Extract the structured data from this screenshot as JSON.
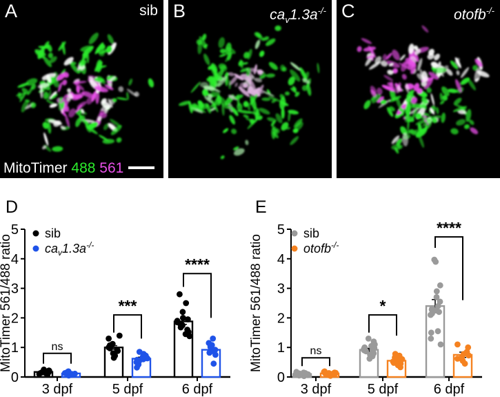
{
  "figure": {
    "colors": {
      "ch488_green": "#2ced2c",
      "ch561_magenta": "#e84fe8",
      "white": "#ffffff",
      "sib_black": "#000000",
      "cav_blue": "#1f53e8",
      "sib_gray": "#9a9a9a",
      "otofb_orange": "#f58220"
    },
    "panels": [
      {
        "letter": "A",
        "genotype_text": "sib",
        "genotype_parts": [
          {
            "t": "sib",
            "s": "p"
          }
        ],
        "caption": {
          "name": "MitoTimer",
          "ch1": "488",
          "ch2": "561"
        },
        "scalebar": true
      },
      {
        "letter": "B",
        "genotype_text": "cav1.3a-/-",
        "genotype_parts": [
          {
            "t": "ca",
            "s": "i"
          },
          {
            "t": "v",
            "s": "sub"
          },
          {
            "t": "1.3a",
            "s": "i"
          },
          {
            "t": "-/-",
            "s": "sup"
          }
        ],
        "scalebar": false
      },
      {
        "letter": "C",
        "genotype_text": "otofb-/-",
        "genotype_parts": [
          {
            "t": "otofb",
            "s": "i"
          },
          {
            "t": "-/-",
            "s": "sup"
          }
        ],
        "scalebar": false
      }
    ]
  },
  "chart_data": [
    {
      "type": "bar+scatter",
      "panel": "D",
      "ylabel": "MitoTimer 561/488 ratio",
      "ylim": [
        0,
        5
      ],
      "yticks": [
        0,
        1,
        2,
        3,
        4,
        5
      ],
      "categories": [
        "3 dpf",
        "5 dpf",
        "6 dpf"
      ],
      "legend_position": "top-left",
      "series": [
        {
          "name": "sib",
          "name_parts": [
            {
              "t": "sib",
              "s": "p"
            }
          ],
          "color": "#000000",
          "means": [
            0.17,
            1.0,
            1.88
          ],
          "errors": [
            0.03,
            0.06,
            0.1
          ],
          "points": [
            [
              0.08,
              0.1,
              0.12,
              0.13,
              0.15,
              0.17,
              0.18,
              0.2,
              0.22,
              0.25,
              0.16
            ],
            [
              0.65,
              0.72,
              0.8,
              0.88,
              0.92,
              0.97,
              1.0,
              1.03,
              1.07,
              1.12,
              1.3,
              1.4
            ],
            [
              1.38,
              1.45,
              1.52,
              1.6,
              1.68,
              1.75,
              1.8,
              1.85,
              1.9,
              1.95,
              2.0,
              2.2,
              2.5,
              2.8
            ]
          ]
        },
        {
          "name": "cav1.3a-/-",
          "name_parts": [
            {
              "t": "ca",
              "s": "i"
            },
            {
              "t": "v",
              "s": "sub"
            },
            {
              "t": "1.3a",
              "s": "i"
            },
            {
              "t": "-/-",
              "s": "sup"
            }
          ],
          "color": "#1f53e8",
          "means": [
            0.12,
            0.62,
            0.92
          ],
          "errors": [
            0.02,
            0.05,
            0.07
          ],
          "points": [
            [
              0.05,
              0.07,
              0.09,
              0.1,
              0.12,
              0.13,
              0.15,
              0.17,
              0.19,
              0.11,
              0.08
            ],
            [
              0.32,
              0.42,
              0.5,
              0.55,
              0.6,
              0.63,
              0.67,
              0.72,
              0.78,
              0.85,
              0.58
            ],
            [
              0.45,
              0.75,
              0.82,
              0.88,
              0.92,
              0.97,
              1.02,
              1.08,
              1.15,
              1.3
            ]
          ]
        }
      ],
      "significance": [
        {
          "category": 0,
          "label": "ns",
          "bar_y": 0.8,
          "left_end": 0.45,
          "right_end": 0.45
        },
        {
          "category": 1,
          "label": "***",
          "bar_y": 2.1,
          "left_end": 1.5,
          "right_end": 1.3
        },
        {
          "category": 2,
          "label": "****",
          "bar_y": 3.5,
          "left_end": 3.05,
          "right_end": 2.0
        }
      ]
    },
    {
      "type": "bar+scatter",
      "panel": "E",
      "ylabel": "MitoTimer 561/488 ratio",
      "ylim": [
        0,
        5
      ],
      "yticks": [
        0,
        1,
        2,
        3,
        4,
        5
      ],
      "categories": [
        "3 dpf",
        "5 dpf",
        "6 dpf"
      ],
      "legend_position": "top-left",
      "series": [
        {
          "name": "sib",
          "name_parts": [
            {
              "t": "sib",
              "s": "p"
            }
          ],
          "color": "#9a9a9a",
          "means": [
            0.1,
            0.92,
            2.4
          ],
          "errors": [
            0.02,
            0.05,
            0.22
          ],
          "points": [
            [
              0.03,
              0.05,
              0.06,
              0.08,
              0.09,
              0.1,
              0.11,
              0.12,
              0.13,
              0.15,
              0.17,
              0.07,
              0.1
            ],
            [
              0.62,
              0.7,
              0.76,
              0.8,
              0.84,
              0.87,
              0.9,
              0.92,
              0.95,
              0.98,
              1.0,
              1.05,
              1.1,
              1.2,
              1.3,
              0.88
            ],
            [
              1.1,
              1.3,
              1.5,
              1.55,
              2.1,
              2.15,
              2.2,
              2.25,
              2.28,
              2.32,
              2.4,
              2.55,
              2.7,
              2.9,
              3.1,
              3.9,
              3.97
            ]
          ]
        },
        {
          "name": "otofb-/-",
          "name_parts": [
            {
              "t": "otofb",
              "s": "i"
            },
            {
              "t": "-/-",
              "s": "sup"
            }
          ],
          "color": "#f58220",
          "means": [
            0.12,
            0.55,
            0.75
          ],
          "errors": [
            0.02,
            0.05,
            0.09
          ],
          "points": [
            [
              0.04,
              0.06,
              0.08,
              0.09,
              0.1,
              0.12,
              0.13,
              0.15,
              0.17,
              0.19,
              0.11,
              0.14
            ],
            [
              0.33,
              0.4,
              0.45,
              0.48,
              0.52,
              0.55,
              0.58,
              0.62,
              0.66,
              0.72,
              0.78,
              0.56,
              0.6
            ],
            [
              0.45,
              0.55,
              0.62,
              0.68,
              0.73,
              0.78,
              0.85,
              1.0,
              1.1
            ]
          ]
        }
      ],
      "significance": [
        {
          "category": 0,
          "label": "ns",
          "bar_y": 0.65,
          "left_end": 0.37,
          "right_end": 0.37
        },
        {
          "category": 1,
          "label": "*",
          "bar_y": 2.1,
          "left_end": 1.5,
          "right_end": 1.4
        },
        {
          "category": 2,
          "label": "****",
          "bar_y": 4.74,
          "left_end": 4.37,
          "right_end": 2.6
        }
      ]
    }
  ]
}
